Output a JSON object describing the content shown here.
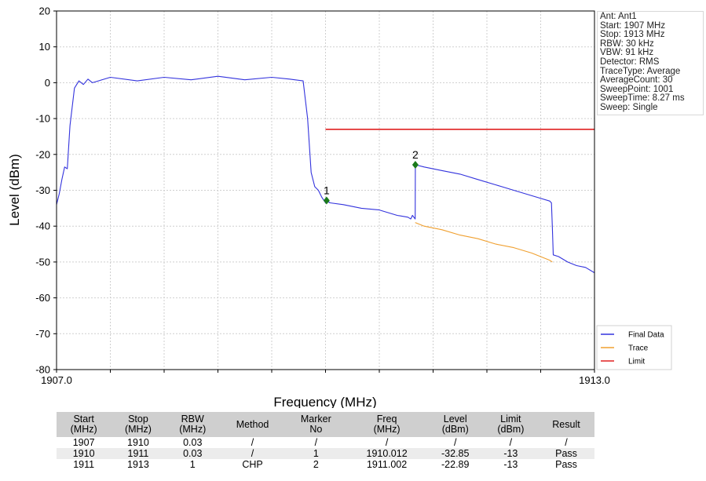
{
  "chart_data": {
    "type": "line",
    "xlabel": "Frequency (MHz)",
    "ylabel": "Level (dBm)",
    "xlim": [
      1907.0,
      1913.0
    ],
    "ylim": [
      -80,
      20
    ],
    "x_tick_labels": [
      "1907.0",
      "1913.0"
    ],
    "y_ticks": [
      20,
      10,
      0,
      -10,
      -20,
      -30,
      -40,
      -50,
      -60,
      -70,
      -80
    ],
    "grid": true,
    "legend_position": "bottom-right",
    "series": [
      {
        "name": "Final Data",
        "color": "#3333dd",
        "x": [
          1907.0,
          1907.03,
          1907.06,
          1907.09,
          1907.12,
          1907.15,
          1907.2,
          1907.25,
          1907.3,
          1907.35,
          1907.4,
          1907.6,
          1907.9,
          1908.2,
          1908.5,
          1908.8,
          1909.1,
          1909.4,
          1909.6,
          1909.75,
          1909.8,
          1909.84,
          1909.88,
          1909.92,
          1909.96,
          1910.0,
          1910.012,
          1910.05,
          1910.2,
          1910.4,
          1910.6,
          1910.8,
          1910.92,
          1910.95,
          1910.97,
          1911.0,
          1911.002,
          1911.003,
          1911.1,
          1911.3,
          1911.5,
          1911.7,
          1911.9,
          1912.1,
          1912.3,
          1912.5,
          1912.52,
          1912.53,
          1912.54,
          1912.6,
          1912.7,
          1912.8,
          1912.9,
          1913.0
        ],
        "y": [
          -34.0,
          -31.0,
          -27.0,
          -23.5,
          -24.0,
          -12.0,
          -1.5,
          0.5,
          -0.5,
          1.0,
          0.0,
          1.5,
          0.5,
          1.5,
          0.8,
          1.8,
          0.8,
          1.5,
          1.0,
          0.5,
          -10.0,
          -25.0,
          -29.0,
          -30.0,
          -32.0,
          -33.5,
          -32.85,
          -33.5,
          -34.0,
          -35.0,
          -35.5,
          -37.0,
          -37.5,
          -38.0,
          -37.0,
          -38.0,
          -22.89,
          -22.89,
          -23.5,
          -24.5,
          -25.5,
          -27.0,
          -28.5,
          -30.0,
          -31.5,
          -33.0,
          -33.5,
          -40.0,
          -48.0,
          -48.5,
          -50.0,
          -51.0,
          -51.5,
          -53.0
        ]
      },
      {
        "name": "Trace",
        "color": "#f0a030",
        "x": [
          1911.0,
          1911.1,
          1911.3,
          1911.5,
          1911.7,
          1911.9,
          1912.1,
          1912.3,
          1912.5,
          1912.53
        ],
        "y": [
          -39.0,
          -40.0,
          -41.0,
          -42.5,
          -43.5,
          -45.0,
          -46.0,
          -47.5,
          -49.5,
          -50.0
        ]
      },
      {
        "name": "Limit",
        "color": "#e02020",
        "x": [
          1910.0,
          1913.0
        ],
        "y": [
          -13,
          -13
        ]
      }
    ],
    "markers": [
      {
        "label": "1",
        "x": 1910.012,
        "y": -32.85,
        "color": "#1a7a1a"
      },
      {
        "label": "2",
        "x": 1911.002,
        "y": -22.89,
        "color": "#1a7a1a"
      }
    ]
  },
  "info_box": [
    "Ant: Ant1",
    "Start: 1907 MHz",
    "Stop: 1913 MHz",
    "RBW: 30 kHz",
    "VBW: 91 kHz",
    "Detector: RMS",
    "TraceType: Average",
    "AverageCount: 30",
    "SweepPoint: 1001",
    "SweepTime: 8.27 ms",
    "Sweep: Single"
  ],
  "table": {
    "headers": [
      [
        "Start",
        "(MHz)"
      ],
      [
        "Stop",
        "(MHz)"
      ],
      [
        "RBW",
        "(MHz)"
      ],
      [
        "Method",
        ""
      ],
      [
        "Marker",
        "No"
      ],
      [
        "Freq",
        "(MHz)"
      ],
      [
        "Level",
        "(dBm)"
      ],
      [
        "Limit",
        "(dBm)"
      ],
      [
        "Result",
        ""
      ]
    ],
    "rows": [
      [
        "1907",
        "1910",
        "0.03",
        "/",
        "/",
        "/",
        "/",
        "/",
        "/"
      ],
      [
        "1910",
        "1911",
        "0.03",
        "/",
        "1",
        "1910.012",
        "-32.85",
        "-13",
        "Pass"
      ],
      [
        "1911",
        "1913",
        "1",
        "CHP",
        "2",
        "1911.002",
        "-22.89",
        "-13",
        "Pass"
      ]
    ]
  }
}
